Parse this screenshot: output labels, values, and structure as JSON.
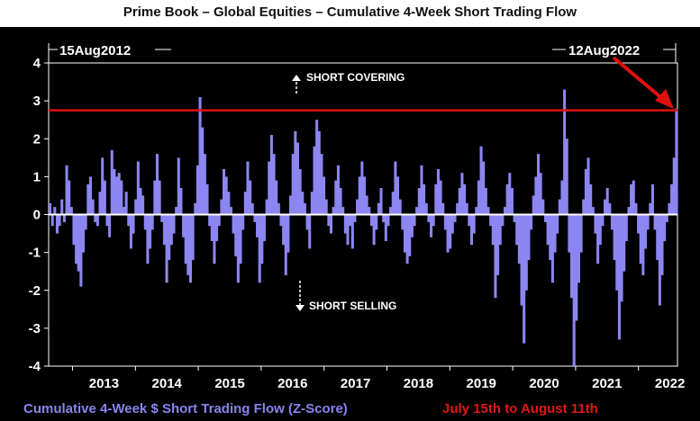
{
  "title": "Prime Book – Global Equities – Cumulative 4-Week Short Trading Flow",
  "footer": {
    "series_label": "Cumulative 4-Week $ Short Trading Flow (Z-Score)",
    "period_label": "July 15th to August 11th"
  },
  "colors": {
    "background": "#000000",
    "bars": "#8c86f2",
    "threshold_line": "#e01010",
    "zero_line": "#ffffff",
    "arrow": "#e01010",
    "text": "#ffffff"
  },
  "chart_data": {
    "type": "bar",
    "title": "Prime Book – Global Equities – Cumulative 4-Week Short Trading Flow",
    "xlabel": "",
    "ylabel": "",
    "ylim": [
      -4,
      4
    ],
    "yticks": [
      "4",
      "3",
      "2",
      "1",
      "0",
      "-1",
      "-2",
      "-3",
      "-4"
    ],
    "xlim": [
      2012.62,
      2022.62
    ],
    "xticks": [
      "2013",
      "2014",
      "2015",
      "2016",
      "2017",
      "2018",
      "2019",
      "2020",
      "2021",
      "2022"
    ],
    "date_range": {
      "start": "15Aug2012",
      "end": "12Aug2022"
    },
    "reference_line": 2.75,
    "annotations": {
      "up": "SHORT COVERING",
      "down": "SHORT SELLING"
    },
    "grid": false,
    "series": [
      {
        "values": [
          0.3,
          -0.3,
          0.2,
          -0.5,
          -0.3,
          0.4,
          -0.2,
          1.3,
          0.9,
          0.2,
          -0.8,
          -1.3,
          -1.5,
          -1.9,
          -1.0,
          -0.4,
          0.8,
          1.0,
          0.4,
          -0.2,
          -0.3,
          0.6,
          1.5,
          0.9,
          -0.3,
          -0.6,
          1.7,
          1.2,
          1.0,
          1.1,
          0.9,
          0.2,
          0.6,
          -0.3,
          -0.9,
          -0.5,
          0.4,
          1.4,
          0.7,
          0.5,
          -0.4,
          -1.3,
          -0.9,
          -0.4,
          0.9,
          1.6,
          0.9,
          -0.2,
          -0.8,
          -1.8,
          -1.2,
          -0.8,
          -0.5,
          0.2,
          1.5,
          0.7,
          -0.6,
          -1.3,
          -1.6,
          -1.8,
          -1.2,
          0.3,
          1.3,
          3.1,
          2.3,
          1.6,
          0.8,
          -0.3,
          -0.7,
          -1.3,
          -0.7,
          -0.3,
          0.4,
          1.2,
          1.0,
          0.6,
          0.2,
          -0.5,
          -1.1,
          -1.8,
          -1.3,
          -0.4,
          0.6,
          1.4,
          0.9,
          0.3,
          -0.2,
          -0.6,
          -1.8,
          -1.3,
          -0.7,
          0.4,
          1.4,
          2.1,
          1.6,
          0.9,
          0.3,
          -0.3,
          -0.8,
          -1.6,
          -1.0,
          0.5,
          1.6,
          2.2,
          1.9,
          1.2,
          0.6,
          0.3,
          -0.4,
          -0.9,
          0.6,
          1.8,
          2.5,
          2.2,
          1.6,
          1.0,
          0.4,
          -0.3,
          -0.5,
          0.2,
          0.9,
          1.3,
          0.7,
          0.2,
          -0.5,
          -0.8,
          -0.3,
          -0.9,
          -0.2,
          0.4,
          1.0,
          1.4,
          1.0,
          0.5,
          0.2,
          -0.3,
          -0.8,
          -0.4,
          0.3,
          0.7,
          -0.2,
          -0.7,
          -0.3,
          0.2,
          0.6,
          1.4,
          1.0,
          0.4,
          -0.4,
          -1.0,
          -1.3,
          -1.1,
          -0.6,
          -0.3,
          0.2,
          0.7,
          1.3,
          0.8,
          0.3,
          -0.2,
          -0.6,
          -0.3,
          0.8,
          1.2,
          0.9,
          0.3,
          -0.4,
          -1.0,
          -0.9,
          -0.5,
          -0.2,
          0.3,
          0.7,
          1.1,
          0.8,
          0.3,
          -0.3,
          -0.8,
          -0.5,
          0.2,
          0.9,
          1.8,
          1.4,
          0.7,
          0.2,
          -0.3,
          -0.8,
          -2.2,
          -1.6,
          -0.8,
          -0.3,
          0.2,
          0.8,
          1.1,
          0.7,
          -0.2,
          -0.8,
          -1.3,
          -2.4,
          -3.4,
          -2.0,
          -1.2,
          -0.4,
          0.5,
          1.0,
          1.6,
          1.1,
          0.4,
          -0.2,
          -0.8,
          -1.2,
          -1.8,
          -1.0,
          -0.5,
          0.4,
          0.9,
          3.3,
          2.0,
          -1.0,
          -2.2,
          -4.0,
          -2.8,
          -1.8,
          -1.0,
          0.4,
          1.2,
          1.5,
          0.8,
          0.2,
          -0.5,
          -1.3,
          -0.8,
          -0.3,
          0.4,
          0.7,
          0.3,
          -0.4,
          -1.2,
          -2.0,
          -3.3,
          -2.3,
          -1.5,
          -0.7,
          0.2,
          0.8,
          0.9,
          0.3,
          -0.5,
          -1.3,
          -1.6,
          -0.9,
          -0.4,
          0.3,
          0.8,
          -0.4,
          -1.2,
          -2.4,
          -1.6,
          -0.7,
          -0.2,
          0.3,
          0.8,
          1.5,
          2.8
        ]
      }
    ]
  }
}
